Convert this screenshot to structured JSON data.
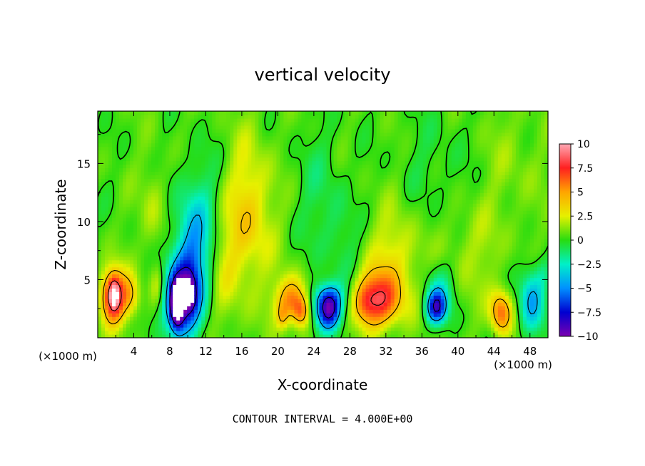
{
  "chart_data": {
    "type": "heatmap",
    "title": "vertical velocity",
    "xlabel": "X-coordinate",
    "ylabel": "Z-coordinate",
    "x_unit": "(×1000 m)",
    "z_unit": "(×1000 m)",
    "xlim": [
      0,
      50
    ],
    "ylim": [
      0,
      19.5
    ],
    "x_ticks": [
      4,
      8,
      12,
      16,
      20,
      24,
      28,
      32,
      36,
      40,
      44,
      48
    ],
    "y_ticks": [
      5,
      10,
      15
    ],
    "colorbar": {
      "range": [
        -10,
        10
      ],
      "tick_values": [
        10,
        7.5,
        5,
        2.5,
        0,
        -2.5,
        -5,
        -7.5,
        -10
      ],
      "tick_labels": [
        "10",
        "7.5",
        "5",
        "2.5",
        "0",
        "−2.5",
        "−5",
        "−7.5",
        "−10"
      ]
    },
    "contour_interval_text": "CONTOUR INTERVAL = 4.000E+00",
    "contour_interval": 4,
    "background_value": 0.4,
    "features": [
      {
        "x": 1.8,
        "z": 3.6,
        "sx": 1.0,
        "sz": 1.6,
        "w": 8.5
      },
      {
        "x": 1.8,
        "z": 3.8,
        "sx": 0.4,
        "sz": 0.9,
        "w": 3.5
      },
      {
        "x": 3.8,
        "z": 3.6,
        "sx": 0.7,
        "sz": 1.3,
        "w": 3.0
      },
      {
        "x": 9.3,
        "z": 3.4,
        "sx": 1.4,
        "sz": 2.3,
        "w": -9.0
      },
      {
        "x": 8.8,
        "z": 2.8,
        "sx": 0.5,
        "sz": 1.3,
        "w": -9.0
      },
      {
        "x": 10.2,
        "z": 3.8,
        "sx": 0.5,
        "sz": 1.0,
        "w": -4.0
      },
      {
        "x": 10.6,
        "z": 7.5,
        "sx": 1.4,
        "sz": 3.2,
        "w": -4.2
      },
      {
        "x": 12.0,
        "z": 11.5,
        "sx": 2.2,
        "sz": 3.5,
        "w": -1.4
      },
      {
        "x": 6.6,
        "z": 4.5,
        "sx": 0.6,
        "sz": 1.3,
        "w": 2.0
      },
      {
        "x": 6.2,
        "z": 11.0,
        "sx": 1.0,
        "sz": 3.0,
        "w": 1.4
      },
      {
        "x": 16.6,
        "z": 10.5,
        "sx": 2.0,
        "sz": 4.5,
        "w": 3.4
      },
      {
        "x": 14.0,
        "z": 6.0,
        "sx": 1.3,
        "sz": 3.5,
        "w": 1.3
      },
      {
        "x": 21.6,
        "z": 3.2,
        "sx": 1.3,
        "sz": 1.4,
        "w": 5.5
      },
      {
        "x": 22.6,
        "z": 2.2,
        "sx": 0.6,
        "sz": 0.9,
        "w": 3.5
      },
      {
        "x": 20.5,
        "z": 1.8,
        "sx": 0.4,
        "sz": 0.7,
        "w": 2.0
      },
      {
        "x": 25.6,
        "z": 2.3,
        "sx": 1.0,
        "sz": 1.2,
        "w": -8.8
      },
      {
        "x": 25.5,
        "z": 3.5,
        "sx": 1.4,
        "sz": 1.0,
        "w": -3.5
      },
      {
        "x": 31.0,
        "z": 3.2,
        "sx": 1.9,
        "sz": 1.6,
        "w": 6.8
      },
      {
        "x": 29.6,
        "z": 3.0,
        "sx": 0.8,
        "sz": 1.2,
        "w": 1.6
      },
      {
        "x": 31.8,
        "z": 6.4,
        "sx": 2.2,
        "sz": 2.2,
        "w": 1.6
      },
      {
        "x": 37.6,
        "z": 2.6,
        "sx": 0.8,
        "sz": 1.0,
        "w": -7.8
      },
      {
        "x": 37.9,
        "z": 4.3,
        "sx": 1.2,
        "sz": 1.6,
        "w": -2.4
      },
      {
        "x": 33.5,
        "z": 7.5,
        "sx": 1.8,
        "sz": 4.0,
        "w": 1.3
      },
      {
        "x": 44.8,
        "z": 2.2,
        "sx": 0.85,
        "sz": 1.3,
        "w": 5.8
      },
      {
        "x": 48.2,
        "z": 3.2,
        "sx": 1.0,
        "sz": 2.0,
        "w": -4.8
      },
      {
        "x": 49.5,
        "z": 5.5,
        "sx": 0.6,
        "sz": 1.0,
        "w": -1.2
      },
      {
        "x": 41.5,
        "z": 7.5,
        "sx": 2.5,
        "sz": 3.0,
        "w": 1.2
      },
      {
        "x": 24.5,
        "z": 13.0,
        "sx": 2.0,
        "sz": 4.0,
        "w": -1.0
      },
      {
        "x": 37.0,
        "z": 14.5,
        "sx": 3.0,
        "sz": 3.5,
        "w": -0.8
      },
      {
        "x": 26.5,
        "z": 9.0,
        "sx": 1.3,
        "sz": 2.5,
        "w": -1.0
      },
      {
        "x": 46.0,
        "z": 15.0,
        "sx": 2.5,
        "sz": 4.0,
        "w": 0.8
      },
      {
        "x": 28.5,
        "z": 6.0,
        "sx": 1.2,
        "sz": 2.0,
        "w": -1.0
      }
    ]
  }
}
